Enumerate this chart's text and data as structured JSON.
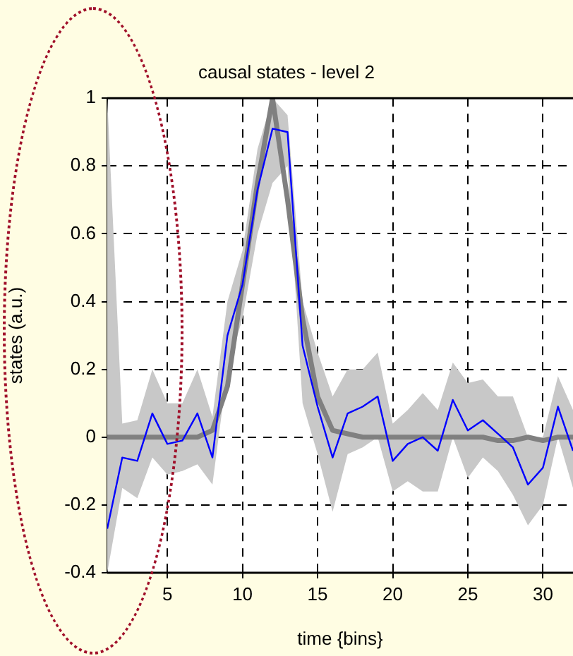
{
  "chart_data": {
    "type": "line",
    "title": "causal states - level 2",
    "xlabel": "time {bins}",
    "ylabel": "states (a.u.)",
    "x": [
      1,
      2,
      3,
      4,
      5,
      6,
      7,
      8,
      9,
      10,
      11,
      12,
      13,
      14,
      15,
      16,
      17,
      18,
      19,
      20,
      21,
      22,
      23,
      24,
      25,
      26,
      27,
      28,
      29,
      30,
      31,
      32
    ],
    "series": [
      {
        "color": "#0000ff",
        "values": [
          -0.27,
          -0.06,
          -0.07,
          0.07,
          -0.02,
          -0.01,
          0.07,
          -0.06,
          0.3,
          0.45,
          0.73,
          0.91,
          0.9,
          0.27,
          0.09,
          -0.06,
          0.07,
          0.09,
          0.12,
          -0.07,
          -0.02,
          0,
          -0.04,
          0.11,
          0.02,
          0.05,
          0.01,
          -0.03,
          -0.14,
          -0.09,
          0.09,
          -0.04
        ],
        "lower": [
          -0.4,
          -0.15,
          -0.18,
          -0.06,
          -0.11,
          -0.1,
          -0.08,
          -0.14,
          0.2,
          0.35,
          0.6,
          0.75,
          0.8,
          0.1,
          -0.05,
          -0.22,
          -0.05,
          -0.03,
          0,
          -0.16,
          -0.13,
          -0.16,
          -0.16,
          0,
          -0.12,
          -0.06,
          -0.1,
          -0.17,
          -0.26,
          -0.2,
          0,
          -0.15
        ],
        "upper": [
          1,
          0.04,
          0.05,
          0.2,
          0.1,
          0.1,
          0.2,
          0.06,
          0.4,
          0.55,
          0.85,
          1,
          0.95,
          0.4,
          0.25,
          0.12,
          0.2,
          0.2,
          0.25,
          0.04,
          0.08,
          0.13,
          0.08,
          0.22,
          0.16,
          0.17,
          0.12,
          0.12,
          0,
          0,
          0.18,
          0.08
        ]
      },
      {
        "color": "#808080",
        "values": [
          0,
          0,
          0,
          0,
          0,
          0,
          0,
          0.02,
          0.15,
          0.45,
          0.75,
          1,
          0.7,
          0.35,
          0.12,
          0.02,
          0.01,
          0,
          0,
          0,
          0,
          0,
          0,
          0,
          0,
          0,
          -0.01,
          -0.01,
          0,
          -0.01,
          0,
          0
        ]
      }
    ],
    "xlim": [
      1,
      32
    ],
    "xticks": [
      5,
      10,
      15,
      20,
      25,
      30
    ],
    "ylim": [
      -0.4,
      1
    ],
    "yticks": [
      -0.4,
      -0.2,
      0,
      0.2,
      0.4,
      0.6,
      0.8,
      1
    ],
    "grid": true,
    "legend": false,
    "line_style": "solid",
    "marker": "none"
  }
}
